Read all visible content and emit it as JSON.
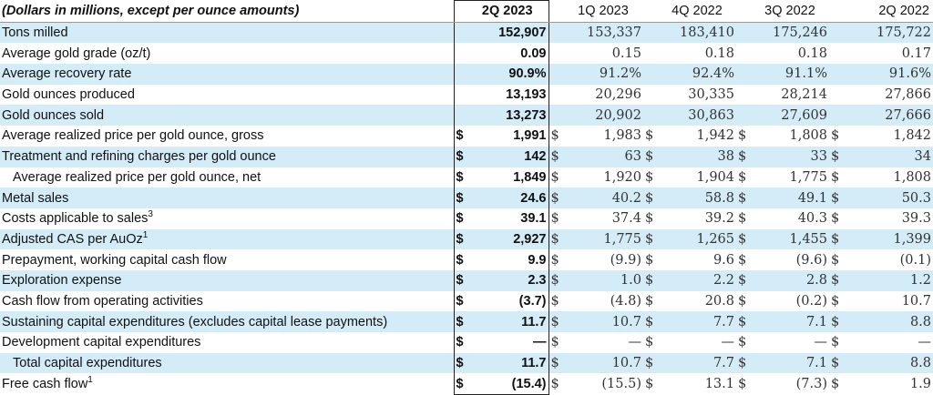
{
  "header": {
    "label": "(Dollars in millions, except per ounce amounts)",
    "periods": [
      "2Q 2023",
      "1Q 2023",
      "4Q 2022",
      "3Q 2022",
      "2Q 2022"
    ]
  },
  "rows": [
    {
      "label": "Tons milled",
      "sup": "",
      "indent": false,
      "values": [
        "152,907",
        "153,337",
        "183,410",
        "175,246",
        "175,722"
      ],
      "dollar": false
    },
    {
      "label": "Average gold grade (oz/t)",
      "sup": "",
      "indent": false,
      "values": [
        "0.09",
        "0.15",
        "0.18",
        "0.18",
        "0.17"
      ],
      "dollar": false
    },
    {
      "label": "Average recovery rate",
      "sup": "",
      "indent": false,
      "values": [
        "90.9%",
        "91.2%",
        "92.4%",
        "91.1%",
        "91.6%"
      ],
      "dollar": false
    },
    {
      "label": "Gold ounces produced",
      "sup": "",
      "indent": false,
      "values": [
        "13,193",
        "20,296",
        "30,335",
        "28,214",
        "27,866"
      ],
      "dollar": false
    },
    {
      "label": "Gold ounces sold",
      "sup": "",
      "indent": false,
      "values": [
        "13,273",
        "20,902",
        "30,863",
        "27,609",
        "27,666"
      ],
      "dollar": false
    },
    {
      "label": "Average realized price per gold ounce, gross",
      "sup": "",
      "indent": false,
      "values": [
        "1,991",
        "1,983",
        "1,942",
        "1,808",
        "1,842"
      ],
      "dollar": true
    },
    {
      "label": "Treatment and refining charges per gold ounce",
      "sup": "",
      "indent": false,
      "values": [
        "142",
        "63",
        "38",
        "33",
        "34"
      ],
      "dollar": true
    },
    {
      "label": "Average realized price per gold ounce, net",
      "sup": "",
      "indent": true,
      "values": [
        "1,849",
        "1,920",
        "1,904",
        "1,775",
        "1,808"
      ],
      "dollar": true
    },
    {
      "label": "Metal sales",
      "sup": "",
      "indent": false,
      "values": [
        "24.6",
        "40.2",
        "58.8",
        "49.1",
        "50.3"
      ],
      "dollar": true
    },
    {
      "label": "Costs applicable to sales",
      "sup": "3",
      "indent": false,
      "values": [
        "39.1",
        "37.4",
        "39.2",
        "40.3",
        "39.3"
      ],
      "dollar": true
    },
    {
      "label": "Adjusted CAS per AuOz",
      "sup": "1",
      "indent": false,
      "values": [
        "2,927",
        "1,775",
        "1,265",
        "1,455",
        "1,399"
      ],
      "dollar": true
    },
    {
      "label": "Prepayment, working capital cash flow",
      "sup": "",
      "indent": false,
      "values": [
        "9.9",
        "(9.9)",
        "9.6",
        "(9.6)",
        "(0.1)"
      ],
      "dollar": true
    },
    {
      "label": "Exploration expense",
      "sup": "",
      "indent": false,
      "values": [
        "2.3",
        "1.0",
        "2.2",
        "2.8",
        "1.2"
      ],
      "dollar": true
    },
    {
      "label": "Cash flow from operating activities",
      "sup": "",
      "indent": false,
      "values": [
        "(3.7)",
        "(4.8)",
        "20.8",
        "(0.2)",
        "10.7"
      ],
      "dollar": true
    },
    {
      "label": "Sustaining capital expenditures (excludes capital lease payments)",
      "sup": "",
      "indent": false,
      "values": [
        "11.7",
        "10.7",
        "7.7",
        "7.1",
        "8.8"
      ],
      "dollar": true
    },
    {
      "label": "Development capital expenditures",
      "sup": "",
      "indent": false,
      "values": [
        "—",
        "—",
        "—",
        "—",
        "—"
      ],
      "dollar": true
    },
    {
      "label": "Total capital expenditures",
      "sup": "",
      "indent": true,
      "values": [
        "11.7",
        "10.7",
        "7.7",
        "7.1",
        "8.8"
      ],
      "dollar": true
    },
    {
      "label": "Free cash flow",
      "sup": "1",
      "indent": false,
      "values": [
        "(15.4)",
        "(15.5)",
        "13.1",
        "(7.3)",
        "1.9"
      ],
      "dollar": true
    }
  ],
  "currency_symbol": "$",
  "colors": {
    "band": "#d4ecf7",
    "current_period_border": "#222222"
  }
}
